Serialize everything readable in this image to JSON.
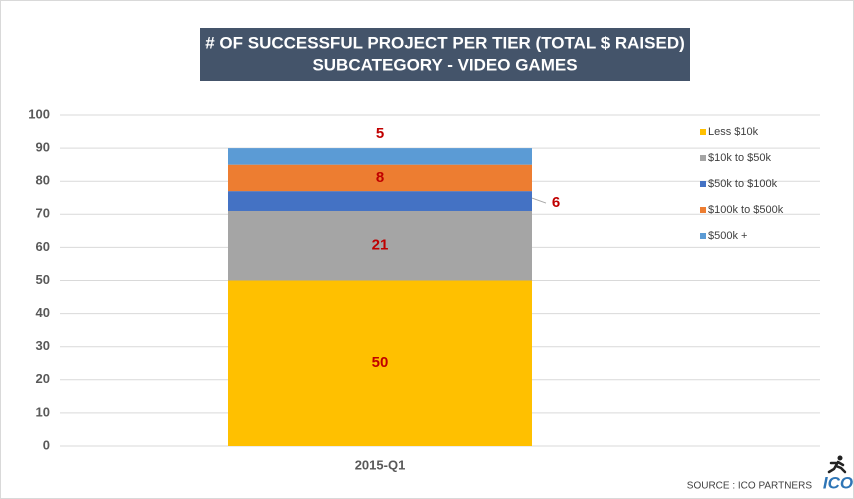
{
  "chart_data": {
    "type": "stacked-bar",
    "title": "# OF SUCCESSFUL PROJECT PER TIER (TOTAL $ RAISED)",
    "subtitle": "SUBCATEGORY - VIDEO GAMES",
    "categories": [
      "2015-Q1"
    ],
    "series": [
      {
        "name": "Less $10k",
        "color": "#ffc000",
        "values": [
          50
        ]
      },
      {
        "name": "$10k to $50k",
        "color": "#a5a5a5",
        "values": [
          21
        ]
      },
      {
        "name": "$50k to $100k",
        "color": "#4472c4",
        "values": [
          6
        ]
      },
      {
        "name": "$100k to $500k",
        "color": "#ed7d31",
        "values": [
          8
        ]
      },
      {
        "name": "$500k +",
        "color": "#5b9bd5",
        "values": [
          5
        ]
      }
    ],
    "ylim": [
      0,
      100
    ],
    "yticks": [
      0,
      10,
      20,
      30,
      40,
      50,
      60,
      70,
      80,
      90,
      100
    ],
    "grid": true,
    "legend": "right",
    "source": "SOURCE : ICO PARTNERS",
    "logo": "ICO"
  }
}
